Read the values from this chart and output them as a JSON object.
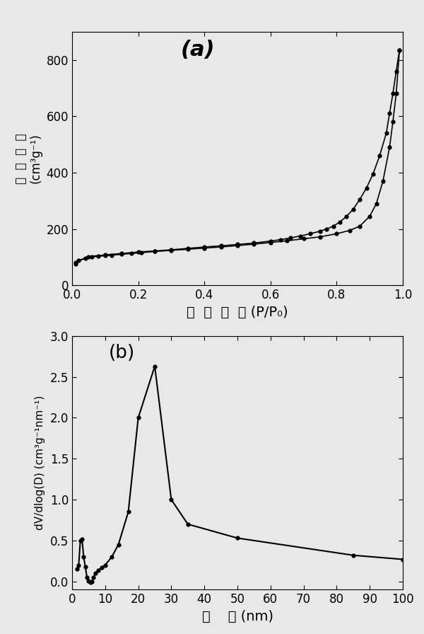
{
  "adsorption_x": [
    0.01,
    0.02,
    0.04,
    0.06,
    0.08,
    0.1,
    0.12,
    0.15,
    0.18,
    0.21,
    0.25,
    0.3,
    0.35,
    0.4,
    0.45,
    0.5,
    0.55,
    0.6,
    0.65,
    0.7,
    0.75,
    0.8,
    0.84,
    0.87,
    0.9,
    0.92,
    0.94,
    0.96,
    0.97,
    0.98,
    0.99
  ],
  "adsorption_y": [
    75,
    88,
    97,
    101,
    103,
    105,
    107,
    110,
    113,
    116,
    120,
    124,
    128,
    132,
    136,
    141,
    146,
    152,
    158,
    165,
    172,
    183,
    195,
    210,
    245,
    290,
    370,
    490,
    580,
    680,
    835
  ],
  "desorption_x": [
    0.99,
    0.98,
    0.97,
    0.96,
    0.95,
    0.93,
    0.91,
    0.89,
    0.87,
    0.85,
    0.83,
    0.81,
    0.79,
    0.77,
    0.75,
    0.72,
    0.69,
    0.66,
    0.63,
    0.6,
    0.55,
    0.5,
    0.45,
    0.4,
    0.35,
    0.3,
    0.25,
    0.2,
    0.15,
    0.1,
    0.05,
    0.01
  ],
  "desorption_y": [
    835,
    760,
    680,
    610,
    540,
    460,
    395,
    345,
    305,
    270,
    245,
    225,
    210,
    200,
    192,
    183,
    175,
    168,
    162,
    157,
    150,
    145,
    140,
    136,
    131,
    126,
    122,
    118,
    113,
    108,
    102,
    80
  ],
  "psd_x": [
    1.5,
    2.0,
    2.5,
    3.0,
    3.5,
    4.0,
    4.5,
    5.0,
    5.5,
    6.0,
    6.5,
    7.0,
    8.0,
    9.0,
    10.0,
    12.0,
    14.0,
    17.0,
    20.0,
    25.0,
    30.0,
    35.0,
    50.0,
    85.0,
    100.0
  ],
  "psd_y": [
    0.15,
    0.2,
    0.5,
    0.52,
    0.3,
    0.18,
    0.05,
    0.01,
    -0.01,
    0.0,
    0.05,
    0.1,
    0.14,
    0.17,
    0.2,
    0.3,
    0.45,
    0.85,
    2.0,
    2.63,
    1.0,
    0.7,
    0.53,
    0.32,
    0.27
  ],
  "fig_bg": "#e8e8e8",
  "plot_bg": "#e8e8e8",
  "label_a": "(a)",
  "label_b": "(b)",
  "ylabel_a_chinese": "吸  附  体  积",
  "ylabel_a_unit": "(cm³g⁻¹)",
  "xlabel_a_chinese": "相  对  压  力",
  "xlabel_a_unit": "(P/P₀)",
  "ylabel_b": "dV/dlog(D) (cm³g⁻¹nm⁻¹)",
  "xlabel_b_chinese": "孔    径",
  "xlabel_b_unit": "(nm)",
  "ylim_a": [
    0,
    900
  ],
  "xlim_a": [
    0.0,
    1.0
  ],
  "ylim_b": [
    -0.1,
    3.0
  ],
  "xlim_b": [
    0,
    100
  ],
  "yticks_a": [
    0,
    200,
    400,
    600,
    800
  ],
  "xticks_a": [
    0.0,
    0.2,
    0.4,
    0.6,
    0.8,
    1.0
  ],
  "yticks_b": [
    0.0,
    0.5,
    1.0,
    1.5,
    2.0,
    2.5,
    3.0
  ],
  "xticks_b": [
    0,
    10,
    20,
    30,
    40,
    50,
    60,
    70,
    80,
    90,
    100
  ]
}
